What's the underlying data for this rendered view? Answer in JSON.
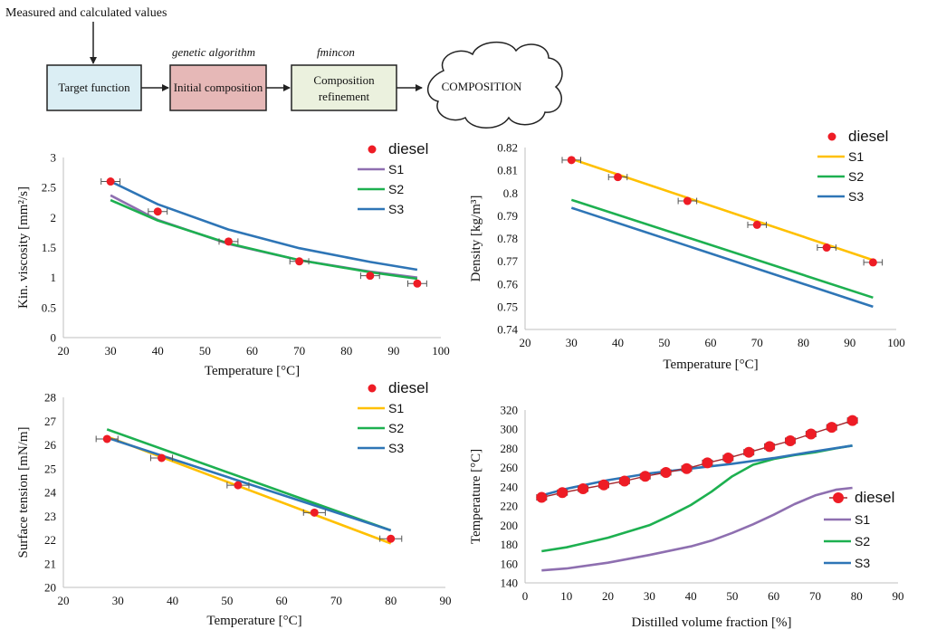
{
  "flowchart": {
    "input_label": "Measured and calculated values",
    "boxes": [
      {
        "id": "target",
        "text": [
          "Target function"
        ],
        "fill": "#dbeef4"
      },
      {
        "id": "initial",
        "text": [
          "Initial composition"
        ],
        "fill": "#e6b8b7",
        "method": "genetic algorithm"
      },
      {
        "id": "refine",
        "text": [
          "Composition",
          "refinement"
        ],
        "fill": "#ebf1de",
        "method": "fmincon"
      }
    ],
    "cloud_text": "COMPOSITION"
  },
  "colors": {
    "diesel": "#ee1c25",
    "S1_viscosity": "#8e6fb0",
    "S1": "#ffc000",
    "S2": "#1db050",
    "S3": "#2e75b6",
    "S1_distillation": "#8e6fb0"
  },
  "chart_data": [
    {
      "id": "viscosity",
      "type": "scatter",
      "title": "",
      "xlabel": "Temperature [°C]",
      "ylabel": "Kin. viscosity [mm²/s]",
      "xlim": [
        20,
        100
      ],
      "ylim": [
        0,
        3
      ],
      "xticks": [
        20,
        30,
        40,
        50,
        60,
        70,
        80,
        90,
        100
      ],
      "yticks": [
        0,
        0.5,
        1,
        1.5,
        2,
        2.5,
        3
      ],
      "xtick_labels": [
        "20",
        "30",
        "40",
        "50",
        "60",
        "70",
        "80",
        "90",
        "100"
      ],
      "ytick_labels": [
        "0",
        "0.5",
        "1",
        "1.5",
        "2",
        "2.5",
        "3"
      ],
      "grid": false,
      "legend_position": "top-right",
      "points": {
        "name": "diesel",
        "x": [
          30,
          40,
          55,
          70,
          85,
          95
        ],
        "y": [
          2.6,
          2.1,
          1.6,
          1.27,
          1.03,
          0.9
        ],
        "xerr": 2
      },
      "series": [
        {
          "name": "S1",
          "color_key": "S1_viscosity",
          "x": [
            30,
            40,
            55,
            70,
            85,
            95
          ],
          "y": [
            2.37,
            1.96,
            1.56,
            1.29,
            1.1,
            1.0
          ]
        },
        {
          "name": "S2",
          "color_key": "S2",
          "x": [
            30,
            40,
            55,
            70,
            85,
            95
          ],
          "y": [
            2.29,
            1.95,
            1.57,
            1.29,
            1.09,
            0.98
          ]
        },
        {
          "name": "S3",
          "color_key": "S3",
          "x": [
            30,
            40,
            55,
            70,
            85,
            95
          ],
          "y": [
            2.6,
            2.22,
            1.8,
            1.49,
            1.26,
            1.13
          ]
        }
      ]
    },
    {
      "id": "density",
      "type": "scatter",
      "title": "",
      "xlabel": "Temperature [°C]",
      "ylabel": "Density [kg/m³]",
      "xlim": [
        20,
        100
      ],
      "ylim": [
        0.74,
        0.82
      ],
      "xticks": [
        20,
        30,
        40,
        50,
        60,
        70,
        80,
        90,
        100
      ],
      "yticks": [
        0.74,
        0.75,
        0.76,
        0.77,
        0.78,
        0.79,
        0.8,
        0.81,
        0.82
      ],
      "xtick_labels": [
        "20",
        "30",
        "40",
        "50",
        "60",
        "70",
        "80",
        "90",
        "100"
      ],
      "ytick_labels": [
        "0.74",
        "0.75",
        "0.76",
        "0.77",
        "0.78",
        "0.79",
        "0.8",
        "0.81",
        "0.82"
      ],
      "grid": false,
      "legend_position": "top-right",
      "points": {
        "name": "diesel",
        "x": [
          30,
          40,
          55,
          70,
          85,
          95
        ],
        "y": [
          0.8145,
          0.807,
          0.7965,
          0.786,
          0.776,
          0.7695
        ],
        "xerr": 2
      },
      "series": [
        {
          "name": "S1",
          "color_key": "S1",
          "x": [
            30,
            95
          ],
          "y": [
            0.815,
            0.7705
          ]
        },
        {
          "name": "S2",
          "color_key": "S2",
          "x": [
            30,
            95
          ],
          "y": [
            0.797,
            0.754
          ]
        },
        {
          "name": "S3",
          "color_key": "S3",
          "x": [
            30,
            95
          ],
          "y": [
            0.7935,
            0.75
          ]
        }
      ]
    },
    {
      "id": "surface_tension",
      "type": "scatter",
      "title": "",
      "xlabel": "Temperature [°C]",
      "ylabel": "Surface tension [mN/m]",
      "xlim": [
        20,
        90
      ],
      "ylim": [
        20,
        28
      ],
      "xticks": [
        20,
        30,
        40,
        50,
        60,
        70,
        80,
        90
      ],
      "yticks": [
        20,
        21,
        22,
        23,
        24,
        25,
        26,
        27,
        28
      ],
      "xtick_labels": [
        "20",
        "30",
        "40",
        "50",
        "60",
        "70",
        "80",
        "90"
      ],
      "ytick_labels": [
        "20",
        "21",
        "22",
        "23",
        "24",
        "25",
        "26",
        "27",
        "28"
      ],
      "grid": false,
      "legend_position": "top-right",
      "points": {
        "name": "diesel",
        "x": [
          28,
          38,
          52,
          66,
          80
        ],
        "y": [
          26.25,
          25.45,
          24.3,
          23.15,
          22.05
        ],
        "xerr": 2
      },
      "series": [
        {
          "name": "S1",
          "color_key": "S1",
          "x": [
            28,
            80
          ],
          "y": [
            26.35,
            21.85
          ]
        },
        {
          "name": "S2",
          "color_key": "S2",
          "x": [
            28,
            80
          ],
          "y": [
            26.65,
            22.4
          ]
        },
        {
          "name": "S3",
          "color_key": "S3",
          "x": [
            28,
            80
          ],
          "y": [
            26.3,
            22.4
          ]
        }
      ]
    },
    {
      "id": "distillation",
      "type": "line",
      "title": "",
      "xlabel": "Distilled volume fraction [%]",
      "ylabel": "Temperature [°C]",
      "xlim": [
        0,
        90
      ],
      "ylim": [
        140,
        320
      ],
      "xticks": [
        0,
        10,
        20,
        30,
        40,
        50,
        60,
        70,
        80,
        90
      ],
      "yticks": [
        140,
        160,
        180,
        200,
        220,
        240,
        260,
        280,
        300,
        320
      ],
      "xtick_labels": [
        "0",
        "10",
        "20",
        "30",
        "40",
        "50",
        "60",
        "70",
        "80",
        "90"
      ],
      "ytick_labels": [
        "140",
        "160",
        "180",
        "200",
        "220",
        "240",
        "260",
        "280",
        "300",
        "320"
      ],
      "grid": false,
      "legend_position": "right",
      "points": {
        "name": "diesel",
        "x": [
          4,
          9,
          14,
          19,
          24,
          29,
          34,
          39,
          44,
          49,
          54,
          59,
          64,
          69,
          74,
          79
        ],
        "y": [
          229,
          234,
          238,
          242,
          246,
          251,
          255,
          259,
          265,
          270,
          276,
          282,
          288,
          295,
          302,
          309
        ],
        "xerr": 1.2,
        "connected": true
      },
      "series": [
        {
          "name": "S1",
          "color_key": "S1_distillation",
          "x": [
            4,
            10,
            20,
            30,
            40,
            45,
            50,
            55,
            60,
            65,
            70,
            75,
            79
          ],
          "y": [
            153,
            155,
            161,
            169,
            178,
            184,
            192,
            201,
            211,
            222,
            231,
            237,
            239
          ]
        },
        {
          "name": "S2",
          "color_key": "S2",
          "x": [
            4,
            10,
            20,
            30,
            35,
            40,
            45,
            50,
            55,
            60,
            65,
            70,
            75,
            79
          ],
          "y": [
            173,
            177,
            187,
            200,
            210,
            221,
            235,
            251,
            263,
            269,
            273,
            276,
            280,
            283
          ]
        },
        {
          "name": "S3",
          "color_key": "S3",
          "x": [
            4,
            10,
            20,
            30,
            40,
            50,
            60,
            70,
            79
          ],
          "y": [
            231,
            238,
            247,
            254,
            259,
            264,
            270,
            277,
            283
          ]
        }
      ]
    }
  ]
}
